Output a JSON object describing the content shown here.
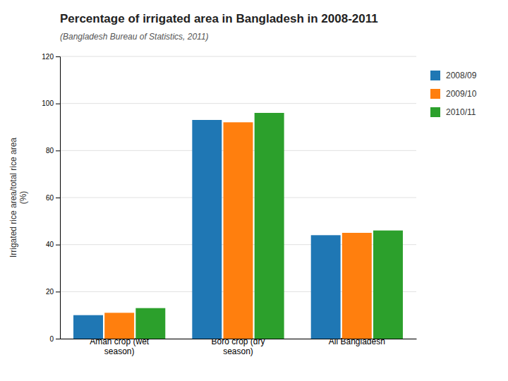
{
  "chart_data": {
    "type": "bar",
    "title": "Percentage of irrigated area in Bangladesh in 2008-2011",
    "subtitle": "(Bangladesh Bureau of Statistics, 2011)",
    "ylabel": "Irrigated rice area/total rice area\n(%)",
    "categories": [
      "Aman crop (wet\nseason)",
      "Boro crop (dry\nseason)",
      "All Bangladesh"
    ],
    "series": [
      {
        "name": "2008/09",
        "values": [
          10,
          93,
          44
        ]
      },
      {
        "name": "2009/10",
        "values": [
          11,
          92,
          45
        ]
      },
      {
        "name": "2010/11",
        "values": [
          13,
          96,
          46
        ]
      }
    ],
    "ylim": [
      0,
      120
    ],
    "yticks": [
      0,
      20,
      40,
      60,
      80,
      100,
      120
    ],
    "grid": true,
    "legend": "right"
  }
}
